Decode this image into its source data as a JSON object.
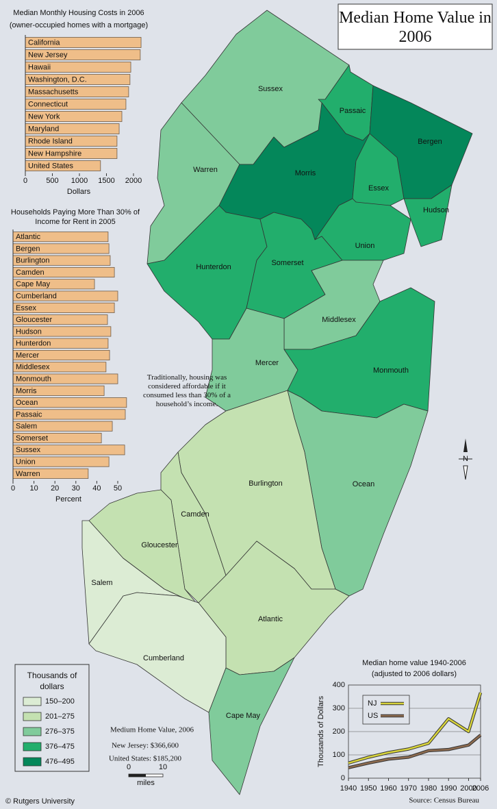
{
  "title": "Median Home Value in 2006",
  "map": {
    "counties": [
      {
        "name": "Sussex",
        "class": 2
      },
      {
        "name": "Warren",
        "class": 2
      },
      {
        "name": "Passaic",
        "class": 3
      },
      {
        "name": "Bergen",
        "class": 4
      },
      {
        "name": "Morris",
        "class": 4
      },
      {
        "name": "Essex",
        "class": 3
      },
      {
        "name": "Hudson",
        "class": 3
      },
      {
        "name": "Union",
        "class": 3
      },
      {
        "name": "Hunterdon",
        "class": 3
      },
      {
        "name": "Somerset",
        "class": 3
      },
      {
        "name": "Middlesex",
        "class": 2
      },
      {
        "name": "Mercer",
        "class": 2
      },
      {
        "name": "Monmouth",
        "class": 3
      },
      {
        "name": "Ocean",
        "class": 2
      },
      {
        "name": "Burlington",
        "class": 1
      },
      {
        "name": "Camden",
        "class": 1
      },
      {
        "name": "Gloucester",
        "class": 1
      },
      {
        "name": "Atlantic",
        "class": 1
      },
      {
        "name": "Salem",
        "class": 0
      },
      {
        "name": "Cumberland",
        "class": 0
      },
      {
        "name": "Cape May",
        "class": 2
      }
    ],
    "legend": {
      "title": "Thousands of dollars",
      "classes": [
        {
          "label": "150–200",
          "color": "#dcecd4"
        },
        {
          "label": "201–275",
          "color": "#c4e1b1"
        },
        {
          "label": "276–375",
          "color": "#80cb9b"
        },
        {
          "label": "376–475",
          "color": "#22ae6c"
        },
        {
          "label": "476–495",
          "color": "#04875a"
        }
      ]
    },
    "north": "N",
    "scale": {
      "ticks": [
        0,
        10
      ],
      "unit": "miles"
    }
  },
  "annotation": "Traditionally, housing was considered affordable if it consumed less than 30% of a household’s income.",
  "summary": {
    "title": "Medium Home Value, 2006",
    "lines": [
      "New Jersey: $366,600",
      "United States: $185,200"
    ]
  },
  "credit": "© Rutgers University",
  "source": "Source: Census Bureau",
  "chart_data": [
    {
      "type": "bar",
      "title": "Median Monthly Housing Costs in  2006",
      "subtitle": "(owner-occupied homes with a mortgage)",
      "x_label": "Dollars",
      "categories": [
        "California",
        "New Jersey",
        "Hawaii",
        "Washington, D.C.",
        "Massachusetts",
        "Connecticut",
        "New York",
        "Maryland",
        "Rhode Island",
        "New Hampshire",
        "United States"
      ],
      "values": [
        2140,
        2125,
        1950,
        1935,
        1910,
        1860,
        1785,
        1735,
        1695,
        1695,
        1390
      ],
      "color": "#efbe89",
      "xlim": [
        0,
        2200
      ],
      "xticks": [
        0,
        500,
        1000,
        1500,
        2000
      ]
    },
    {
      "type": "bar",
      "title": "Households Paying More Than 30% of Income for Rent in 2005",
      "x_label": "Percent",
      "categories": [
        "Atlantic",
        "Bergen",
        "Burlington",
        "Camden",
        "Cape May",
        "Cumberland",
        "Essex",
        "Gloucester",
        "Hudson",
        "Hunterdon",
        "Mercer",
        "Middlesex",
        "Monmouth",
        "Morris",
        "Ocean",
        "Passaic",
        "Salem",
        "Somerset",
        "Sussex",
        "Union",
        "Warren"
      ],
      "values": [
        45.4,
        45.8,
        46.4,
        48.4,
        38.9,
        50,
        48.4,
        45.1,
        46.7,
        45.4,
        46.1,
        44.4,
        50,
        43.5,
        54.2,
        53.6,
        47.4,
        42.2,
        53.3,
        45.8,
        35.9
      ],
      "color": "#efbe89",
      "xlim": [
        0,
        55
      ],
      "xticks": [
        0,
        10,
        20,
        30,
        40,
        50
      ]
    },
    {
      "type": "line",
      "title": "Median home value 1940-2006",
      "subtitle": "(adjusted to 2006 dollars)",
      "y_label": "Thousands of Dollars",
      "x": [
        1940,
        1950,
        1960,
        1970,
        1980,
        1990,
        2000,
        2006
      ],
      "series": [
        {
          "name": "NJ",
          "color": "#d9d53c",
          "values": [
            65,
            90,
            110,
            125,
            150,
            255,
            200,
            367
          ]
        },
        {
          "name": "US",
          "color": "#8e6c50",
          "values": [
            45,
            65,
            82,
            90,
            118,
            123,
            142,
            185
          ]
        }
      ],
      "xlim": [
        1940,
        2006
      ],
      "xticks": [
        1940,
        1950,
        1960,
        1970,
        1980,
        1990,
        2000,
        2006
      ],
      "ylim": [
        0,
        400
      ],
      "yticks": [
        0,
        100,
        200,
        300,
        400
      ],
      "grid": true
    }
  ]
}
